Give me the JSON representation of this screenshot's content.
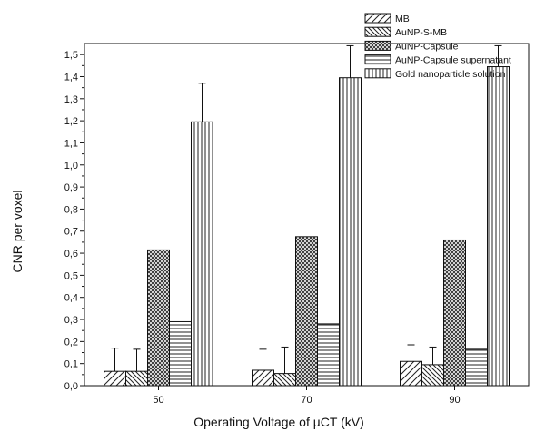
{
  "chart_data": {
    "type": "bar",
    "title": "",
    "xlabel": "Operating Voltage of µCT (kV)",
    "ylabel": "CNR per voxel",
    "categories": [
      "50",
      "70",
      "90"
    ],
    "ylim": [
      0,
      1.55
    ],
    "yticks": [
      "0,0",
      "0,1",
      "0,2",
      "0,3",
      "0,4",
      "0,5",
      "0,6",
      "0,7",
      "0,8",
      "0,9",
      "1,0",
      "1,1",
      "1,2",
      "1,3",
      "1,4",
      "1,5"
    ],
    "grid": false,
    "legend_position": "top-right",
    "series": [
      {
        "name": "MB",
        "pattern": "diag-up",
        "values": [
          0.065,
          0.07,
          0.11
        ],
        "errors": [
          0.105,
          0.095,
          0.075
        ]
      },
      {
        "name": "AuNP-S-MB",
        "pattern": "diag-down",
        "values": [
          0.065,
          0.055,
          0.095
        ],
        "errors": [
          0.1,
          0.12,
          0.08
        ]
      },
      {
        "name": "AuNP-Capsule",
        "pattern": "crosshatch",
        "values": [
          0.615,
          0.675,
          0.66
        ],
        "errors": [
          0,
          0,
          0
        ]
      },
      {
        "name": "AuNP-Capsule supernatant",
        "pattern": "horizontal",
        "values": [
          0.29,
          0.28,
          0.165
        ],
        "errors": [
          0,
          0,
          0
        ]
      },
      {
        "name": "Gold nanoparticle solution",
        "pattern": "vertical",
        "values": [
          1.195,
          1.395,
          1.445
        ],
        "errors": [
          0.175,
          0.145,
          0.095
        ]
      }
    ]
  }
}
